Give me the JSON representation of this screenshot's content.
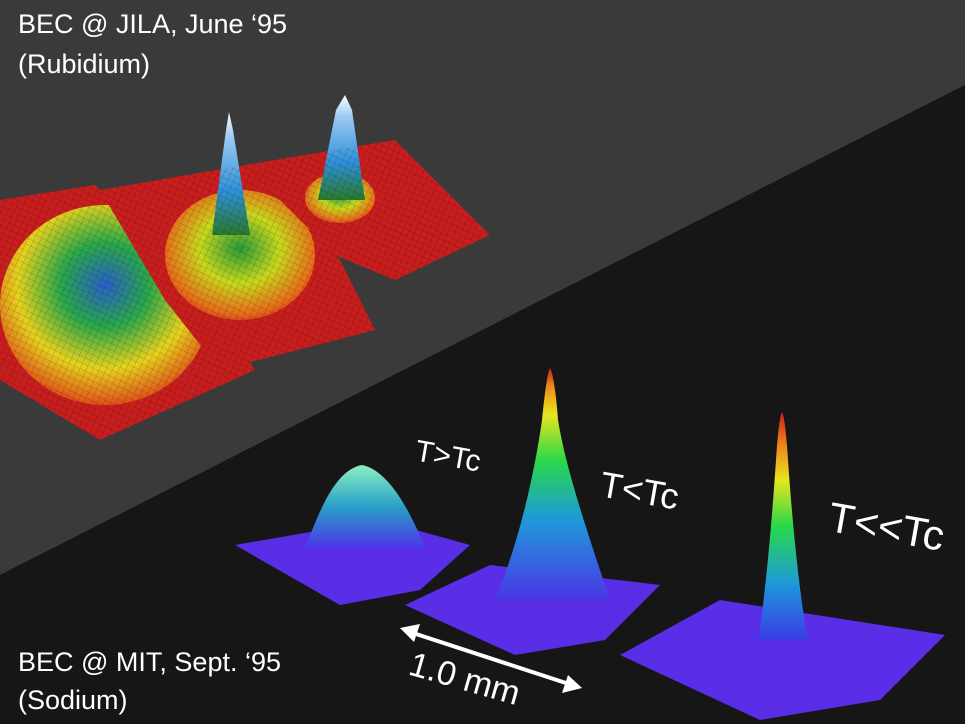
{
  "top_caption": {
    "line1": "BEC @ JILA, June ‘95",
    "line2": "(Rubidium)"
  },
  "bottom_caption": {
    "line1": "BEC @ MIT, Sept. ‘95",
    "line2": "(Sodium)"
  },
  "temperature_labels": [
    "T>Tc",
    "T<Tc",
    "T<<Tc"
  ],
  "scale_label": "1.0 mm",
  "colors": {
    "background_upper": "#3a3a3a",
    "background_lower": "#161616",
    "text": "#ffffff",
    "jila_base": "#c81e1e",
    "mit_base": "#5a2ee6"
  }
}
